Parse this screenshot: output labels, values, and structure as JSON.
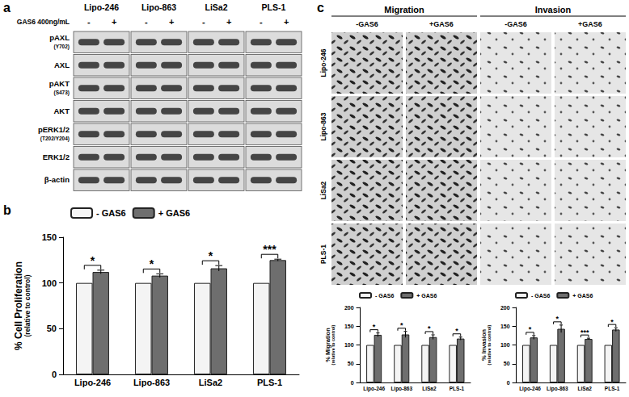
{
  "panel_labels": [
    "a",
    "b",
    "c"
  ],
  "blot": {
    "treatment_label": "GAS6 400ng/mL",
    "treatment_levels": [
      "-",
      "+"
    ],
    "cell_lines": [
      "Lipo-246",
      "Lipo-863",
      "LiSa2",
      "PLS-1"
    ],
    "rows": [
      {
        "name": "pAXL",
        "site": "(Y702)"
      },
      {
        "name": "AXL"
      },
      {
        "name": "pAKT",
        "site": "(S473)"
      },
      {
        "name": "AKT"
      },
      {
        "name": "pERK1/2",
        "site": "(T202/Y204)"
      },
      {
        "name": "ERK1/2"
      },
      {
        "name": "β-actin"
      }
    ]
  },
  "images": {
    "assays": [
      "Migration",
      "Invasion"
    ],
    "conditions": [
      "-GAS6",
      "+GAS6"
    ],
    "cell_lines": [
      "Lipo-246",
      "Lipo-863",
      "LiSa2",
      "PLS-1"
    ]
  },
  "chart_data": [
    {
      "type": "bar",
      "y_label": "% Cell Proliferation",
      "y_sublabel": "(relative to control)",
      "categories": [
        "Lipo-246",
        "Lipo-863",
        "LiSa2",
        "PLS-1"
      ],
      "series": [
        {
          "name": "- GAS6",
          "color": "#f4f4f4",
          "values": [
            100,
            100,
            100,
            100
          ]
        },
        {
          "name": "+ GAS6",
          "color": "#6e6e6e",
          "values": [
            112,
            108,
            116,
            125
          ],
          "errors": [
            2,
            2,
            3,
            1
          ]
        }
      ],
      "significance": [
        "*",
        "*",
        "*",
        "***"
      ],
      "ylim": [
        0,
        150
      ],
      "yticks": [
        0,
        50,
        100,
        150
      ],
      "grid": false,
      "legend": "upper left"
    },
    {
      "type": "bar",
      "y_label": "% Migration",
      "y_sublabel": "(relative to control)",
      "categories": [
        "Lipo-246",
        "Lipo-863",
        "LiSa2",
        "PLS-1"
      ],
      "series": [
        {
          "name": "- GAS6",
          "color": "#f4f4f4",
          "values": [
            100,
            100,
            100,
            100
          ]
        },
        {
          "name": "+ GAS6",
          "color": "#6e6e6e",
          "values": [
            127,
            128,
            121,
            117
          ],
          "errors": [
            5,
            8,
            6,
            4
          ]
        }
      ],
      "significance": [
        "*",
        "*",
        "*",
        "*"
      ],
      "ylim": [
        0,
        200
      ],
      "yticks": [
        0,
        50,
        100,
        150,
        200
      ],
      "grid": false,
      "legend": "upper left"
    },
    {
      "type": "bar",
      "y_label": "% Invasion",
      "y_sublabel": "(relative to control)",
      "categories": [
        "Lipo-246",
        "Lipo-863",
        "LiSa2",
        "PLS-1"
      ],
      "series": [
        {
          "name": "- GAS6",
          "color": "#f4f4f4",
          "values": [
            100,
            100,
            100,
            100
          ]
        },
        {
          "name": "+ GAS6",
          "color": "#6e6e6e",
          "values": [
            120,
            143,
            116,
            141
          ],
          "errors": [
            5,
            10,
            2,
            5
          ]
        }
      ],
      "significance": [
        "*",
        "*",
        "***",
        "*"
      ],
      "ylim": [
        0,
        200
      ],
      "yticks": [
        0,
        50,
        100,
        150,
        200
      ],
      "grid": false,
      "legend": "upper left"
    }
  ]
}
